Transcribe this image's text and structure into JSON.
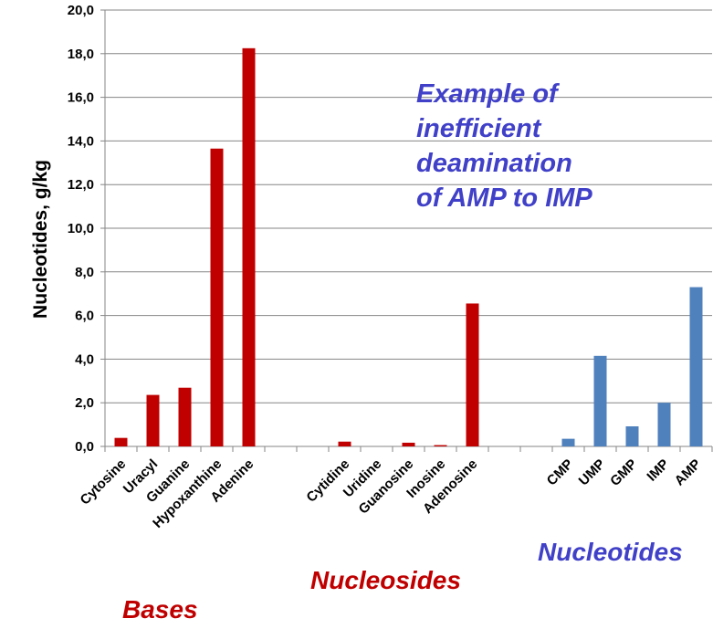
{
  "chart_data": {
    "type": "bar",
    "ylabel": "Nucleotides, g/kg",
    "ylim": [
      0,
      20
    ],
    "ytick_step": 2,
    "ytick_labels": [
      "0,0",
      "2,0",
      "4,0",
      "6,0",
      "8,0",
      "10,0",
      "12,0",
      "14,0",
      "16,0",
      "18,0",
      "20,0"
    ],
    "grid": true,
    "categories": [
      "Cytosine",
      "Uracyl",
      "Guanine",
      "Hypoxanthine",
      "Adenine",
      "",
      "",
      "Cytidine",
      "Uridine",
      "Guanosine",
      "Inosine",
      "Adenosine",
      "",
      "",
      "CMP",
      "UMP",
      "GMP",
      "IMP",
      "AMP"
    ],
    "values": [
      0.39,
      2.36,
      2.69,
      13.65,
      18.25,
      null,
      null,
      0.22,
      0,
      0.17,
      0.06,
      6.55,
      null,
      null,
      0.35,
      4.15,
      0.92,
      2.0,
      7.3
    ],
    "groups": [
      {
        "label": "Bases",
        "color": "#C00000",
        "start": 0,
        "end": 4
      },
      {
        "label": "Nucleosides",
        "color": "#C00000",
        "start": 7,
        "end": 11
      },
      {
        "label": "Nucleotides",
        "color": "#4F81BD",
        "start": 14,
        "end": 18
      }
    ],
    "group_label_colors": {
      "Bases": "#C00000",
      "Nucleosides": "#C00000",
      "Nucleotides": "#4040C8"
    },
    "annotation": [
      "Example of",
      "inefficient",
      "deamination",
      "of AMP to IMP"
    ],
    "annotation_color": "#4040C8"
  }
}
